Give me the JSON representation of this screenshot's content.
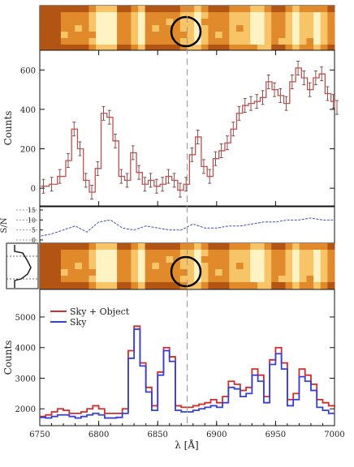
{
  "chart_data": [
    {
      "type": "line",
      "panel": "upper-spectrum",
      "ylabel": "Counts",
      "xlim": [
        6750,
        7000
      ],
      "ylim": [
        -90,
        700
      ],
      "yticks": [
        "0",
        "200",
        "400",
        "600"
      ],
      "ytick_values": [
        0,
        200,
        400,
        600
      ],
      "x": [
        6751,
        6758,
        6765,
        6772,
        6777,
        6782,
        6787,
        6792,
        6797,
        6802,
        6807,
        6812,
        6817,
        6822,
        6827,
        6832,
        6837,
        6842,
        6847,
        6852,
        6857,
        6862,
        6867,
        6872,
        6877,
        6882,
        6887,
        6892,
        6897,
        6902,
        6907,
        6912,
        6917,
        6922,
        6927,
        6932,
        6937,
        6942,
        6947,
        6952,
        6957,
        6962,
        6967,
        6972,
        6977,
        6982,
        6987,
        6992,
        6997,
        7000
      ],
      "series": [
        {
          "values": [
            10,
            20,
            60,
            140,
            300,
            200,
            40,
            -20,
            100,
            380,
            360,
            240,
            60,
            40,
            180,
            80,
            20,
            40,
            10,
            20,
            60,
            40,
            -10,
            20,
            170,
            260,
            110,
            60,
            150,
            190,
            230,
            300,
            380,
            420,
            430,
            440,
            460,
            540,
            500,
            470,
            430,
            540,
            610,
            560,
            500,
            560,
            580,
            480,
            440,
            410
          ]
        }
      ],
      "error_bar": 35
    },
    {
      "type": "line",
      "panel": "sn-ratio",
      "ylabel": "S/N",
      "ylim": [
        0,
        15
      ],
      "yticks": [
        "0",
        "5",
        "10",
        "15"
      ],
      "ytick_values": [
        0,
        5,
        10,
        15
      ],
      "x": [
        6751,
        6760,
        6770,
        6780,
        6790,
        6800,
        6810,
        6820,
        6830,
        6840,
        6850,
        6860,
        6870,
        6880,
        6890,
        6900,
        6910,
        6920,
        6930,
        6940,
        6950,
        6960,
        6970,
        6980,
        6990,
        7000
      ],
      "series": [
        {
          "values": [
            2,
            3,
            5,
            7,
            4,
            9,
            10,
            6,
            5,
            7,
            6,
            5,
            5,
            8,
            6,
            6,
            7,
            7,
            8,
            9,
            9,
            10,
            10,
            11,
            10,
            10
          ]
        }
      ]
    },
    {
      "type": "line",
      "panel": "lower-spectrum",
      "ylabel": "Counts",
      "xlabel": "λ [Å]",
      "xlim": [
        6750,
        7000
      ],
      "ylim": [
        1450,
        5900
      ],
      "xticks": [
        "6750",
        "6800",
        "6850",
        "6900",
        "6950",
        "7000"
      ],
      "xtick_values": [
        6750,
        6800,
        6850,
        6900,
        6950,
        7000
      ],
      "yticks": [
        "2000",
        "3000",
        "4000",
        "5000"
      ],
      "ytick_values": [
        2000,
        3000,
        4000,
        5000
      ],
      "legend_position": "top-left",
      "colors": {
        "sky_object": "#d22b2b",
        "sky": "#3440d6"
      },
      "x": [
        6750,
        6755,
        6760,
        6765,
        6770,
        6775,
        6780,
        6785,
        6790,
        6795,
        6800,
        6805,
        6810,
        6815,
        6820,
        6825,
        6830,
        6835,
        6840,
        6845,
        6850,
        6855,
        6860,
        6865,
        6870,
        6875,
        6880,
        6885,
        6890,
        6895,
        6900,
        6905,
        6910,
        6915,
        6920,
        6925,
        6930,
        6935,
        6940,
        6945,
        6950,
        6955,
        6960,
        6965,
        6970,
        6975,
        6980,
        6985,
        6990,
        6995,
        7000
      ],
      "series": [
        {
          "name": "Sky + Object",
          "values": [
            1750,
            1800,
            1900,
            2000,
            1950,
            1850,
            1850,
            1900,
            2000,
            2100,
            2000,
            1850,
            1850,
            1850,
            2000,
            3900,
            4700,
            3500,
            2700,
            2100,
            3200,
            4000,
            3700,
            2100,
            2050,
            2050,
            2100,
            2150,
            2200,
            2300,
            2200,
            2400,
            2900,
            2800,
            2600,
            2700,
            3300,
            3100,
            2400,
            3600,
            4000,
            3500,
            2300,
            2500,
            3300,
            3100,
            2800,
            2300,
            2200,
            2100,
            2050
          ]
        },
        {
          "name": "Sky",
          "values": [
            1720,
            1700,
            1750,
            1800,
            1800,
            1750,
            1700,
            1750,
            1800,
            1850,
            1800,
            1700,
            1700,
            1720,
            1850,
            3650,
            4600,
            3400,
            2550,
            1950,
            3100,
            3900,
            3550,
            1950,
            1900,
            1900,
            1950,
            2000,
            2050,
            2100,
            2050,
            2200,
            2700,
            2650,
            2400,
            2500,
            3100,
            2900,
            2200,
            3450,
            3800,
            3300,
            2100,
            2300,
            3050,
            2900,
            2600,
            2050,
            1950,
            1850,
            1850
          ]
        }
      ]
    }
  ],
  "marker_wavelength": 6875,
  "image_strip_colors": {
    "dark": "#b25413",
    "mid": "#e08a2c",
    "light": "#f8c468",
    "bright": "#fff3c4"
  }
}
